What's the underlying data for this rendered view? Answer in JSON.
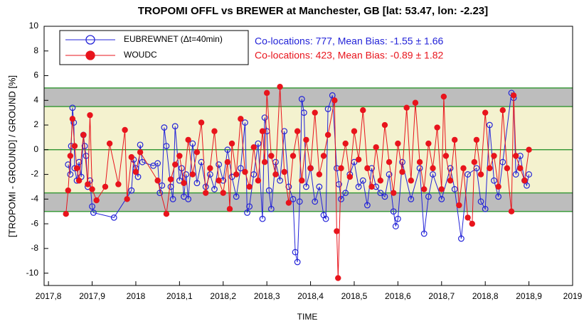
{
  "chart_data": {
    "type": "line",
    "title": "TROPOMI OFFL vs BREWER at Manchester, GB [lat: 53.47, lon: -2.23]",
    "x_label": "TIME",
    "y_label": "[TROPOMI - GROUND] / GROUND [%]",
    "annotations": [
      {
        "text": "Co-locations: 777, Mean Bias: -1.55 ± 1.66",
        "color": "#2323d8"
      },
      {
        "text": "Co-locations: 423, Mean Bias: -0.89 ± 1.82",
        "color": "#e8141c"
      }
    ],
    "xlim": [
      2017.79,
      2019
    ],
    "xticks": [
      {
        "value": 2017.8,
        "label": "2017,8"
      },
      {
        "value": 2017.9,
        "label": "2017,9"
      },
      2018,
      {
        "value": 2018.1,
        "label": "2018,1"
      },
      {
        "value": 2018.2,
        "label": "2018,2"
      },
      {
        "value": 2018.3,
        "label": "2018,3"
      },
      {
        "value": 2018.4,
        "label": "2018,4"
      },
      {
        "value": 2018.5,
        "label": "2018,5"
      },
      {
        "value": 2018.6,
        "label": "2018,6"
      },
      {
        "value": 2018.7,
        "label": "2018,7"
      },
      {
        "value": 2018.8,
        "label": "2018,8"
      },
      {
        "value": 2018.9,
        "label": "2018,9"
      },
      2019
    ],
    "ylim": [
      -11,
      10
    ],
    "yticks": [
      -10,
      -8,
      -6,
      -4,
      -2,
      0,
      2,
      4,
      6,
      8,
      10
    ],
    "grid": false,
    "bands": [
      {
        "from": -5,
        "to": 5,
        "color": "#bdbdbd"
      },
      {
        "from": -3.5,
        "to": 3.5,
        "color": "#f4f2cf"
      }
    ],
    "ref_lines": {
      "values": [
        -5,
        -3.5,
        0,
        3.5,
        5
      ],
      "color": "#3c9a3c"
    },
    "legend": "upper left",
    "series": [
      {
        "name": "EUBREWNET (Δt=40min)",
        "color": "#2323d8",
        "marker": "open",
        "x": [
          2017.845,
          2017.85,
          2017.852,
          2017.855,
          2017.858,
          2017.86,
          2017.865,
          2017.87,
          2017.875,
          2017.88,
          2017.883,
          2017.886,
          2017.89,
          2017.895,
          2017.9,
          2017.903,
          2017.95,
          2017.99,
          2017.995,
          2018.0,
          2018.005,
          2018.01,
          2018.015,
          2018.04,
          2018.05,
          2018.055,
          2018.06,
          2018.065,
          2018.07,
          2018.08,
          2018.085,
          2018.09,
          2018.1,
          2018.105,
          2018.11,
          2018.115,
          2018.12,
          2018.13,
          2018.14,
          2018.15,
          2018.16,
          2018.17,
          2018.18,
          2018.19,
          2018.2,
          2018.21,
          2018.22,
          2018.23,
          2018.24,
          2018.25,
          2018.255,
          2018.26,
          2018.27,
          2018.28,
          2018.29,
          2018.295,
          2018.3,
          2018.305,
          2018.31,
          2018.32,
          2018.33,
          2018.34,
          2018.35,
          2018.36,
          2018.365,
          2018.37,
          2018.375,
          2018.38,
          2018.385,
          2018.39,
          2018.4,
          2018.41,
          2018.42,
          2018.43,
          2018.435,
          2018.44,
          2018.45,
          2018.46,
          2018.465,
          2018.47,
          2018.48,
          2018.49,
          2018.5,
          2018.51,
          2018.52,
          2018.53,
          2018.54,
          2018.55,
          2018.56,
          2018.57,
          2018.58,
          2018.59,
          2018.595,
          2018.6,
          2018.61,
          2018.63,
          2018.65,
          2018.66,
          2018.67,
          2018.68,
          2018.7,
          2018.72,
          2018.73,
          2018.745,
          2018.76,
          2018.78,
          2018.79,
          2018.8,
          2018.81,
          2018.82,
          2018.83,
          2018.84,
          2018.86,
          2018.865,
          2018.87,
          2018.88,
          2018.89,
          2018.895,
          2018.9
        ],
        "values": [
          -1.2,
          -2,
          0.3,
          3.4,
          2.2,
          -1.5,
          -2.5,
          -1,
          -2.2,
          1.2,
          0.3,
          -0.5,
          -3,
          -2.5,
          -4.6,
          -5.1,
          -5.5,
          -3.3,
          -0.8,
          -1.5,
          -2.2,
          0.4,
          -1,
          -1.3,
          -1.1,
          -3.5,
          -2.9,
          1.8,
          0.3,
          -3,
          -4,
          1.9,
          -2.5,
          -1.5,
          -3.8,
          -2,
          -4,
          0.5,
          -2.7,
          -1,
          -3,
          -2,
          -3.2,
          -1.2,
          -2.5,
          0,
          -2.2,
          -3.8,
          -1.5,
          2.2,
          -5.1,
          -4.6,
          -2,
          0.5,
          -5.6,
          2.6,
          1.5,
          -3.3,
          -4.8,
          -1,
          -2.5,
          1.5,
          -3,
          -4,
          -8.3,
          -9.1,
          -4.2,
          4.1,
          3,
          -3,
          -1.5,
          -4.2,
          -3,
          -5.3,
          -5.6,
          3.3,
          4.4,
          -1.5,
          -2.8,
          -4,
          -3.5,
          -2,
          -1,
          -3,
          -2.5,
          -4.5,
          -1.5,
          -3,
          -3.5,
          -3.8,
          -2,
          -5,
          -6.2,
          -5.6,
          -1,
          -4,
          -1.5,
          -6.8,
          -3.8,
          -2,
          -4,
          -1.5,
          -3.2,
          -7.2,
          -2,
          -1.5,
          -4.2,
          -4.8,
          2,
          -2.5,
          -3.8,
          -1,
          4.6,
          4.2,
          -2,
          -0.5,
          -2.5,
          -2.9,
          -2
        ]
      },
      {
        "name": "WOUDC",
        "color": "#e8141c",
        "marker": "filled",
        "x": [
          2017.84,
          2017.845,
          2017.85,
          2017.855,
          2017.86,
          2017.865,
          2017.87,
          2017.88,
          2017.89,
          2017.895,
          2017.9,
          2017.91,
          2017.93,
          2017.94,
          2017.96,
          2017.975,
          2017.98,
          2017.99,
          2018.0,
          2018.01,
          2018.05,
          2018.07,
          2018.08,
          2018.09,
          2018.1,
          2018.11,
          2018.12,
          2018.13,
          2018.14,
          2018.15,
          2018.16,
          2018.17,
          2018.18,
          2018.19,
          2018.2,
          2018.21,
          2018.215,
          2018.22,
          2018.23,
          2018.24,
          2018.25,
          2018.26,
          2018.27,
          2018.28,
          2018.29,
          2018.295,
          2018.3,
          2018.31,
          2018.32,
          2018.33,
          2018.34,
          2018.35,
          2018.36,
          2018.37,
          2018.38,
          2018.39,
          2018.4,
          2018.41,
          2018.42,
          2018.43,
          2018.44,
          2018.455,
          2018.46,
          2018.463,
          2018.47,
          2018.48,
          2018.49,
          2018.5,
          2018.51,
          2018.52,
          2018.53,
          2018.54,
          2018.55,
          2018.56,
          2018.57,
          2018.58,
          2018.59,
          2018.6,
          2018.61,
          2018.62,
          2018.63,
          2018.64,
          2018.65,
          2018.66,
          2018.67,
          2018.68,
          2018.69,
          2018.7,
          2018.705,
          2018.71,
          2018.72,
          2018.73,
          2018.74,
          2018.75,
          2018.76,
          2018.77,
          2018.775,
          2018.78,
          2018.79,
          2018.8,
          2018.81,
          2018.82,
          2018.83,
          2018.84,
          2018.85,
          2018.86,
          2018.865,
          2018.87,
          2018.88,
          2018.89,
          2018.9
        ],
        "values": [
          -5.2,
          -3.3,
          -0.5,
          2.5,
          0.3,
          -1.5,
          -2.5,
          1.2,
          -2.8,
          2.8,
          -3.2,
          -4.1,
          -3,
          0.5,
          -2.8,
          1.6,
          -4,
          -0.6,
          -1.8,
          -0.2,
          -2.5,
          -5.2,
          -2.4,
          -1.2,
          -0.5,
          -2.7,
          0.8,
          -2,
          -0.2,
          2.2,
          -3.5,
          -1.5,
          1.5,
          -2.5,
          -3.5,
          -1,
          -4.8,
          0.5,
          -2,
          2.5,
          -1.8,
          -3,
          0.2,
          -2.5,
          1.5,
          -1,
          4.6,
          -0.5,
          -2,
          5.1,
          -1.8,
          -4.3,
          -0.5,
          1.5,
          -2.5,
          0.8,
          -1.5,
          3,
          -2,
          -0.5,
          1.2,
          4,
          -6.6,
          -10.4,
          -1.5,
          0.5,
          -2.2,
          1.5,
          -0.8,
          3.2,
          -1.5,
          -3,
          0.2,
          -2.5,
          2,
          -1,
          -3.5,
          0.5,
          -1.8,
          3.4,
          -2.5,
          3.8,
          -1,
          -3.2,
          0.5,
          -1.5,
          1.8,
          -3.2,
          4.3,
          -0.5,
          -2.5,
          0.8,
          -4.5,
          -1.5,
          -5.5,
          -6,
          -1,
          0.8,
          -2,
          3,
          -1.5,
          -0.5,
          -3,
          3.2,
          -1.5,
          -5,
          4.4,
          -0.5,
          -1.5,
          -2.5,
          0
        ]
      }
    ]
  }
}
